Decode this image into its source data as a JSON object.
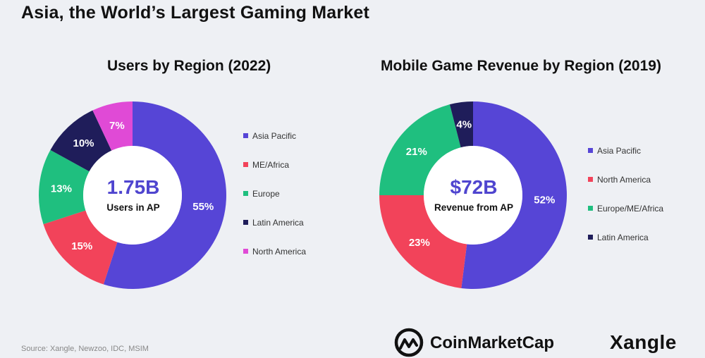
{
  "main_title": "Asia, the World’s Largest Gaming Market",
  "source": "Source: Xangle, Newzoo, IDC, MSIM",
  "brand": {
    "cmc": "CoinMarketCap",
    "xangle": "Xangle"
  },
  "chart_data": [
    {
      "type": "pie",
      "subtype": "donut",
      "title": "Users by Region (2022)",
      "center_value": "1.75B",
      "center_label": "Users in AP",
      "categories": [
        "Asia Pacific",
        "ME/Africa",
        "Europe",
        "Latin America",
        "North America"
      ],
      "values": [
        55,
        15,
        13,
        10,
        7
      ],
      "value_labels": [
        "55%",
        "15%",
        "13%",
        "10%",
        "7%"
      ],
      "colors": [
        "#5645d6",
        "#f2435a",
        "#1fbf7f",
        "#1f1d5a",
        "#e04ad6"
      ]
    },
    {
      "type": "pie",
      "subtype": "donut",
      "title": "Mobile Game Revenue by Region (2019)",
      "center_value": "$72B",
      "center_label": "Revenue from AP",
      "categories": [
        "Asia Pacific",
        "North America",
        "Europe/ME/Africa",
        "Latin America"
      ],
      "values": [
        52,
        23,
        21,
        4
      ],
      "value_labels": [
        "52%",
        "23%",
        "21%",
        "4%"
      ],
      "colors": [
        "#5645d6",
        "#f2435a",
        "#1fbf7f",
        "#1f1d5a"
      ]
    }
  ]
}
